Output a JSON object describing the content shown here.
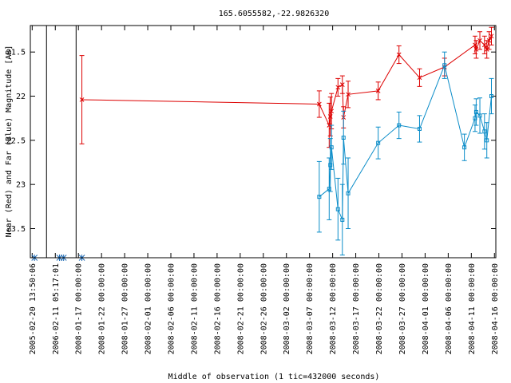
{
  "chart_data": {
    "type": "scatter",
    "title": "165.6055582,-22.9826320",
    "xlabel": "Middle of observation (1 tic=432000 seconds)",
    "ylabel": "Near (Red) and Far (Blue) Magnitude [AB]",
    "y_inverted": true,
    "ylim": [
      23.83,
      21.2
    ],
    "grid": false,
    "legend": "none",
    "y_ticks": [
      21.5,
      22,
      22.5,
      23,
      23.5
    ],
    "y_tick_labels": [
      "21.5",
      "22",
      "22.5",
      "23",
      "23.5"
    ],
    "x_tick_labels": [
      "2005-02-20 13:50:06",
      "2006-02-11 05:17:01",
      "2008-01-17 00:00:00",
      "2008-01-22 00:00:00",
      "2008-01-27 00:00:00",
      "2008-02-01 00:00:00",
      "2008-02-06 00:00:00",
      "2008-02-11 00:00:00",
      "2008-02-16 00:00:00",
      "2008-02-21 00:00:00",
      "2008-02-26 00:00:00",
      "2008-03-02 00:00:00",
      "2008-03-07 00:00:00",
      "2008-03-12 00:00:00",
      "2008-03-17 00:00:00",
      "2008-03-22 00:00:00",
      "2008-03-27 00:00:00",
      "2008-04-01 00:00:00",
      "2008-04-06 00:00:00",
      "2008-04-11 00:00:00",
      "2008-04-16 00:00:00"
    ],
    "x_tick_positions": [
      0,
      1,
      2,
      3,
      4,
      5,
      6,
      7,
      8,
      9,
      10,
      11,
      12,
      13,
      14,
      15,
      16,
      17,
      18,
      19,
      20
    ],
    "axis_breaks": [
      0.62,
      1.9
    ],
    "xlim": [
      -0.08,
      20.06
    ],
    "markers_no_data": [
      0.1,
      1.18,
      1.36,
      2.15
    ],
    "colors": {
      "near": "#dd0000",
      "far": "#0a8cc8",
      "marker": "#1e6ab4",
      "axis": "#000000"
    },
    "series": [
      {
        "name": "Near (Red)",
        "color": "#dd0000",
        "marker": "x",
        "points": [
          {
            "x": 2.15,
            "y": 22.04,
            "err": 0.5
          },
          {
            "x": 12.42,
            "y": 22.09,
            "err": 0.15
          },
          {
            "x": 12.85,
            "y": 22.33,
            "err": 0.25
          },
          {
            "x": 12.9,
            "y": 22.23,
            "err": 0.22
          },
          {
            "x": 12.95,
            "y": 22.17,
            "err": 0.2
          },
          {
            "x": 13.23,
            "y": 21.9,
            "err": 0.1
          },
          {
            "x": 13.42,
            "y": 21.87,
            "err": 0.1
          },
          {
            "x": 13.47,
            "y": 22.24,
            "err": 0.12
          },
          {
            "x": 13.67,
            "y": 21.98,
            "err": 0.15
          },
          {
            "x": 14.97,
            "y": 21.94,
            "err": 0.1
          },
          {
            "x": 15.87,
            "y": 21.53,
            "err": 0.1
          },
          {
            "x": 16.76,
            "y": 21.79,
            "err": 0.1
          },
          {
            "x": 17.84,
            "y": 21.67,
            "err": 0.1
          },
          {
            "x": 19.16,
            "y": 21.42,
            "err": 0.1
          },
          {
            "x": 19.21,
            "y": 21.47,
            "err": 0.1
          },
          {
            "x": 19.37,
            "y": 21.37,
            "err": 0.1
          },
          {
            "x": 19.57,
            "y": 21.42,
            "err": 0.1
          },
          {
            "x": 19.67,
            "y": 21.47,
            "err": 0.1
          },
          {
            "x": 19.77,
            "y": 21.37,
            "err": 0.1
          },
          {
            "x": 19.87,
            "y": 21.32,
            "err": 0.1
          }
        ]
      },
      {
        "name": "Far (Blue)",
        "color": "#0a8cc8",
        "marker": "square",
        "points": [
          {
            "x": 12.42,
            "y": 23.14,
            "err": 0.4
          },
          {
            "x": 12.85,
            "y": 23.05,
            "err": 0.35
          },
          {
            "x": 12.9,
            "y": 22.78,
            "err": 0.3
          },
          {
            "x": 12.95,
            "y": 22.58,
            "err": 0.25
          },
          {
            "x": 13.23,
            "y": 23.28,
            "err": 0.35
          },
          {
            "x": 13.42,
            "y": 23.4,
            "err": 0.4
          },
          {
            "x": 13.47,
            "y": 22.47,
            "err": 0.3
          },
          {
            "x": 13.67,
            "y": 23.1,
            "err": 0.4
          },
          {
            "x": 14.97,
            "y": 22.53,
            "err": 0.18
          },
          {
            "x": 15.87,
            "y": 22.33,
            "err": 0.15
          },
          {
            "x": 16.76,
            "y": 22.37,
            "err": 0.15
          },
          {
            "x": 17.84,
            "y": 21.65,
            "err": 0.15
          },
          {
            "x": 18.7,
            "y": 22.58,
            "err": 0.15
          },
          {
            "x": 19.16,
            "y": 22.25,
            "err": 0.15
          },
          {
            "x": 19.21,
            "y": 22.18,
            "err": 0.15
          },
          {
            "x": 19.37,
            "y": 22.22,
            "err": 0.2
          },
          {
            "x": 19.57,
            "y": 22.4,
            "err": 0.2
          },
          {
            "x": 19.67,
            "y": 22.5,
            "err": 0.2
          },
          {
            "x": 19.87,
            "y": 22.0,
            "err": 0.2
          }
        ]
      }
    ]
  }
}
